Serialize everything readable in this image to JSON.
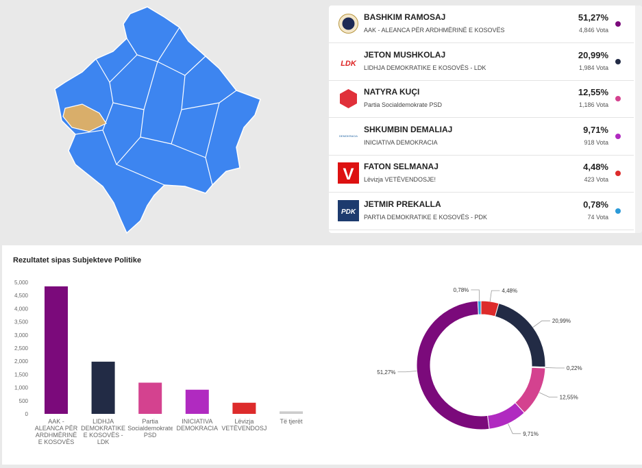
{
  "candidates": [
    {
      "name": "BASHKIM RAMOSAJ",
      "party": "AAK - ALEANCA PËR ARDHMËRINË E KOSOVËS",
      "percent": "51,27%",
      "votes": "4,846 Vota",
      "color": "#7b0a7b"
    },
    {
      "name": "JETON MUSHKOLAJ",
      "party": "LIDHJA DEMOKRATIKE E KOSOVËS - LDK",
      "percent": "20,99%",
      "votes": "1,984 Vota",
      "color": "#222b45",
      "logo": "LDK"
    },
    {
      "name": "NATYRA KUÇI",
      "party": "Partia Socialdemokrate PSD",
      "percent": "12,55%",
      "votes": "1,186 Vota",
      "color": "#d4428f"
    },
    {
      "name": "SHKUMBIN DEMALIAJ",
      "party": "INICIATIVA DEMOKRACIA",
      "percent": "9,71%",
      "votes": "918 Vota",
      "color": "#b02ac0",
      "logo": "DEMOKRACIA"
    },
    {
      "name": "FATON SELMANAJ",
      "party": "Lëvizja VETËVENDOSJE!",
      "percent": "4,48%",
      "votes": "423 Vota",
      "color": "#dd2b2b",
      "logo": "V"
    },
    {
      "name": "JETMIR PREKALLA",
      "party": "PARTIA DEMOKRATIKE E KOSOVËS - PDK",
      "percent": "0,78%",
      "votes": "74 Vota",
      "color": "#2b9ad8",
      "logo": "PDK"
    }
  ],
  "chart_data": [
    {
      "type": "bar",
      "title": "Rezultatet sipas Subjekteve Politike",
      "categories": [
        "AAK - ALEANCA PËR ARDHMËRINË E KOSOVËS",
        "LIDHJA DEMOKRATIKE E KOSOVËS - LDK",
        "Partia Socialdemokrate PSD",
        "INICIATIVA DEMOKRACIA",
        "Lëvizja VETËVENDOSJE!",
        "Të tjerët"
      ],
      "values": [
        4846,
        1984,
        1186,
        918,
        423,
        95
      ],
      "colors": [
        "#7b0a7b",
        "#222b45",
        "#d4428f",
        "#b02ac0",
        "#dd2b2b",
        "#cccccc"
      ],
      "ylim": [
        0,
        5000
      ],
      "yticks": [
        0,
        500,
        {
          "value": 1000,
          "label": "1,000"
        },
        {
          "value": 1500,
          "label": "1,500"
        },
        {
          "value": 2000,
          "label": "2,000"
        },
        {
          "value": 2500,
          "label": "2,500"
        },
        {
          "value": 3000,
          "label": "3,000"
        },
        {
          "value": 3500,
          "label": "3,500"
        },
        {
          "value": 4000,
          "label": "4,000"
        },
        {
          "value": 4500,
          "label": "4,500"
        },
        {
          "value": 5000,
          "label": "5,000"
        }
      ],
      "grid": false
    },
    {
      "type": "donut",
      "values": [
        4.48,
        20.99,
        0.22,
        12.55,
        9.71,
        51.27,
        0.78
      ],
      "value_labels": [
        "4,48%",
        "20,99%",
        "0,22%",
        "12,55%",
        "9,71%",
        "51,27%",
        "0,78%"
      ],
      "colors": [
        "#dd2b2b",
        "#222b45",
        "#cccccc",
        "#d4428f",
        "#b02ac0",
        "#7b0a7b",
        "#2b9ad8"
      ]
    }
  ]
}
